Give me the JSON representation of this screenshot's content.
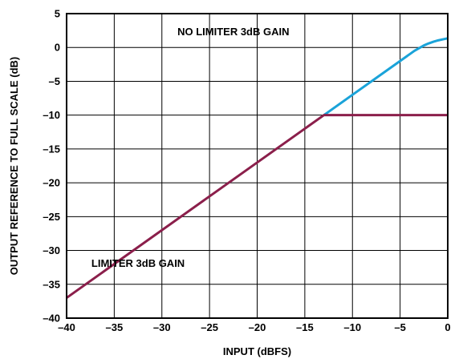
{
  "chart_data": {
    "type": "line",
    "title": "",
    "xlabel": "INPUT (dBFS)",
    "ylabel": "OUTPUT REFERENCE TO FULL SCALE (dB)",
    "xlim": [
      -40,
      0
    ],
    "ylim": [
      -40,
      5
    ],
    "xticks": [
      -40,
      -35,
      -30,
      -25,
      -20,
      -15,
      -10,
      -5,
      0
    ],
    "yticks": [
      5,
      0,
      -5,
      -10,
      -15,
      -20,
      -25,
      -30,
      -35,
      -40
    ],
    "xtick_labels": [
      "–40",
      "–35",
      "–30",
      "–25",
      "–20",
      "–15",
      "–10",
      "–5",
      "0"
    ],
    "ytick_labels": [
      "5",
      "0",
      "–5",
      "–10",
      "–15",
      "–20",
      "–25",
      "–30",
      "–35",
      "–40"
    ],
    "grid": true,
    "series": [
      {
        "name": "NO LIMITER 3dB GAIN",
        "color": "#1aa3d9",
        "x": [
          -13,
          -10,
          -7,
          -5,
          -4,
          -3.5,
          -3,
          -2.5,
          -2,
          -1.5,
          -1,
          -0.5,
          0
        ],
        "y": [
          -10,
          -7,
          -4,
          -2,
          -1,
          -0.5,
          -0.1,
          0.3,
          0.6,
          0.85,
          1.05,
          1.2,
          1.35
        ]
      },
      {
        "name": "LIMITER 3dB GAIN",
        "color": "#8b1f4b",
        "x": [
          -40,
          -13,
          0
        ],
        "y": [
          -37,
          -10,
          -10
        ]
      }
    ],
    "annotations": [
      {
        "text": "NO LIMITER 3dB GAIN",
        "x": -22.5,
        "y": 1.8
      },
      {
        "text": "LIMITER 3dB GAIN",
        "x": -32.5,
        "y": -32.4
      }
    ]
  }
}
